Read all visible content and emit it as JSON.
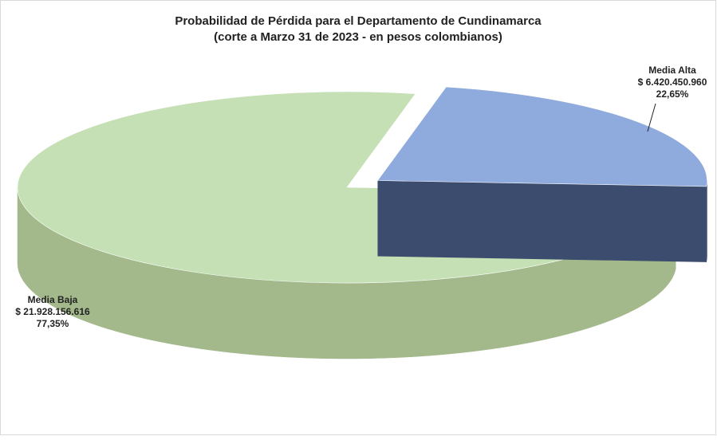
{
  "chart_data": {
    "type": "pie3d",
    "title": "Probabilidad de Pérdida para el Departamento de Cundinamarca",
    "subtitle": "(corte a Marzo 31 de 2023 -  en pesos colombianos)",
    "categories": [
      "Media Alta",
      "Media Baja"
    ],
    "values": [
      6420450960,
      21928156616
    ],
    "value_labels": [
      "$ 6.420.450.960",
      "$ 21.928.156.616"
    ],
    "percent_labels": [
      "22,65%",
      "77,35%"
    ],
    "colors": [
      "#8faadc",
      "#c5e0b4"
    ],
    "side_colors": [
      "#3c4c6e",
      "#a3b98c"
    ],
    "exploded": [
      true,
      false
    ]
  }
}
